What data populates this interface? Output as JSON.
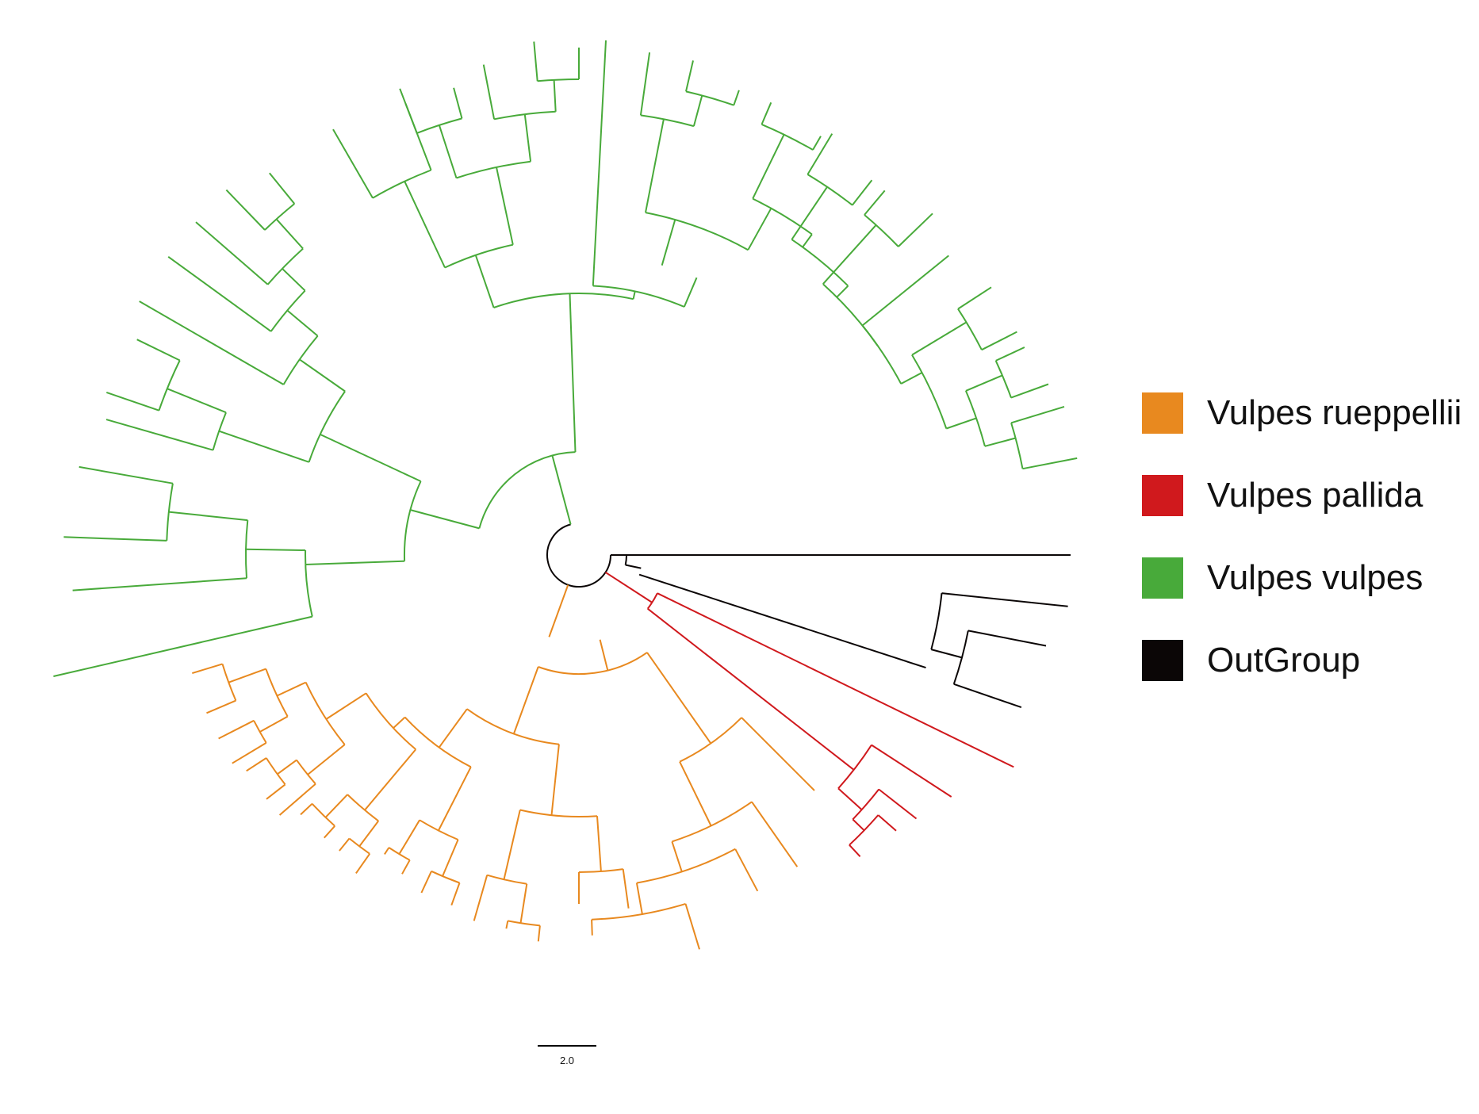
{
  "legend": {
    "items": [
      {
        "label": "Vulpes rueppellii",
        "color": "#E8891F"
      },
      {
        "label": "Vulpes pallida",
        "color": "#D0191D"
      },
      {
        "label": "Vulpes vulpes",
        "color": "#48AA3A"
      },
      {
        "label": "OutGroup",
        "color": "#0B0606"
      }
    ]
  },
  "scale_bar": {
    "label": "2.0"
  },
  "tree": {
    "layout": "circular",
    "clades": [
      {
        "name": "Vulpes vulpes",
        "color_key": "Vulpes vulpes"
      },
      {
        "name": "Vulpes rueppellii",
        "color_key": "Vulpes rueppellii"
      },
      {
        "name": "Vulpes pallida",
        "color_key": "Vulpes pallida"
      },
      {
        "name": "OutGroup",
        "color_key": "OutGroup"
      }
    ]
  }
}
